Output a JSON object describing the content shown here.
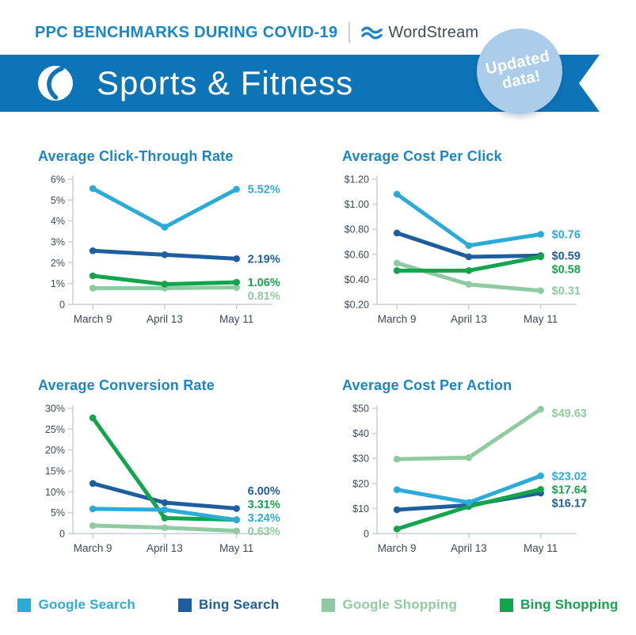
{
  "header": {
    "title": "PPC BENCHMARKS DURING COVID-19",
    "brand": "WordStream"
  },
  "banner": {
    "title": "Sports & Fitness",
    "badge_line1": "Updated",
    "badge_line2": "data!"
  },
  "colors": {
    "banner_blue": "#0E74B8",
    "badge_blue": "#ABCDE9",
    "title_blue": "#1787C8",
    "brand_text": "#3E4A56",
    "axis_text": "#3E4A56",
    "axis_line": "#C9CED3",
    "google_search": "#2BACD8",
    "bing_search": "#1E5E9E",
    "google_shopping": "#8FCBA0",
    "bing_shopping": "#13A54C"
  },
  "legend": [
    {
      "label": "Google Search",
      "color_key": "google_search"
    },
    {
      "label": "Bing Search",
      "color_key": "bing_search"
    },
    {
      "label": "Google Shopping",
      "color_key": "google_shopping"
    },
    {
      "label": "Bing Shopping",
      "color_key": "bing_shopping"
    }
  ],
  "chart_data": [
    {
      "type": "line",
      "title": "Average Click-Through Rate",
      "x": [
        "March 9",
        "April 13",
        "May 11"
      ],
      "ylim": [
        0,
        6
      ],
      "y_ticks": [
        {
          "value": 0,
          "label": "0"
        },
        {
          "value": 1,
          "label": "1%"
        },
        {
          "value": 2,
          "label": "2%"
        },
        {
          "value": 3,
          "label": "3%"
        },
        {
          "value": 4,
          "label": "4%"
        },
        {
          "value": 5,
          "label": "5%"
        },
        {
          "value": 6,
          "label": "6%"
        }
      ],
      "series": [
        {
          "name": "Google Search",
          "color_key": "google_search",
          "values": [
            5.55,
            3.7,
            5.52
          ],
          "end_label": "5.52%"
        },
        {
          "name": "Bing Search",
          "color_key": "bing_search",
          "values": [
            2.57,
            2.38,
            2.19
          ],
          "end_label": "2.19%"
        },
        {
          "name": "Google Shopping",
          "color_key": "google_shopping",
          "values": [
            0.78,
            0.78,
            0.81
          ],
          "end_label": "0.81%"
        },
        {
          "name": "Bing Shopping",
          "color_key": "bing_shopping",
          "values": [
            1.37,
            0.97,
            1.06
          ],
          "end_label": "1.06%"
        }
      ]
    },
    {
      "type": "line",
      "title": "Average Cost Per Click",
      "x": [
        "March 9",
        "April 13",
        "May 11"
      ],
      "ylim": [
        0.2,
        1.2
      ],
      "y_ticks": [
        {
          "value": 0.2,
          "label": "$0.20"
        },
        {
          "value": 0.4,
          "label": "$0.40"
        },
        {
          "value": 0.6,
          "label": "$0.60"
        },
        {
          "value": 0.8,
          "label": "$0.80"
        },
        {
          "value": 1.0,
          "label": "$1.00"
        },
        {
          "value": 1.2,
          "label": "$1.20"
        }
      ],
      "series": [
        {
          "name": "Google Search",
          "color_key": "google_search",
          "values": [
            1.08,
            0.67,
            0.76
          ],
          "end_label": "$0.76"
        },
        {
          "name": "Bing Search",
          "color_key": "bing_search",
          "values": [
            0.77,
            0.58,
            0.59
          ],
          "end_label": "$0.59"
        },
        {
          "name": "Google Shopping",
          "color_key": "google_shopping",
          "values": [
            0.53,
            0.36,
            0.31
          ],
          "end_label": "$0.31"
        },
        {
          "name": "Bing Shopping",
          "color_key": "bing_shopping",
          "values": [
            0.47,
            0.47,
            0.58
          ],
          "end_label": "$0.58"
        }
      ]
    },
    {
      "type": "line",
      "title": "Average Conversion Rate",
      "x": [
        "March 9",
        "April 13",
        "May 11"
      ],
      "ylim": [
        0,
        30
      ],
      "y_ticks": [
        {
          "value": 0,
          "label": "0"
        },
        {
          "value": 5,
          "label": "5%"
        },
        {
          "value": 10,
          "label": "10%"
        },
        {
          "value": 15,
          "label": "15%"
        },
        {
          "value": 20,
          "label": "20%"
        },
        {
          "value": 25,
          "label": "25%"
        },
        {
          "value": 30,
          "label": "30%"
        }
      ],
      "series": [
        {
          "name": "Google Search",
          "color_key": "google_search",
          "values": [
            5.9,
            5.7,
            3.24
          ],
          "end_label": "3.24%"
        },
        {
          "name": "Bing Search",
          "color_key": "bing_search",
          "values": [
            12.0,
            7.4,
            6.0
          ],
          "end_label": "6.00%"
        },
        {
          "name": "Google Shopping",
          "color_key": "google_shopping",
          "values": [
            1.9,
            1.4,
            0.63
          ],
          "end_label": "0.63%"
        },
        {
          "name": "Bing Shopping",
          "color_key": "bing_shopping",
          "values": [
            27.7,
            3.7,
            3.31
          ],
          "end_label": "3.31%"
        }
      ]
    },
    {
      "type": "line",
      "title": "Average Cost Per Action",
      "x": [
        "March 9",
        "April 13",
        "May 11"
      ],
      "ylim": [
        0,
        50
      ],
      "y_ticks": [
        {
          "value": 0,
          "label": "0"
        },
        {
          "value": 10,
          "label": "$10"
        },
        {
          "value": 20,
          "label": "$20"
        },
        {
          "value": 30,
          "label": "$30"
        },
        {
          "value": 40,
          "label": "$40"
        },
        {
          "value": 50,
          "label": "$50"
        }
      ],
      "series": [
        {
          "name": "Google Search",
          "color_key": "google_search",
          "values": [
            17.5,
            12.4,
            23.02
          ],
          "end_label": "$23.02"
        },
        {
          "name": "Bing Search",
          "color_key": "bing_search",
          "values": [
            9.5,
            11.3,
            16.17
          ],
          "end_label": "$16.17"
        },
        {
          "name": "Google Shopping",
          "color_key": "google_shopping",
          "values": [
            29.7,
            30.3,
            49.63
          ],
          "end_label": "$49.63"
        },
        {
          "name": "Bing Shopping",
          "color_key": "bing_shopping",
          "values": [
            1.8,
            10.8,
            17.64
          ],
          "end_label": "$17.64"
        }
      ]
    }
  ]
}
